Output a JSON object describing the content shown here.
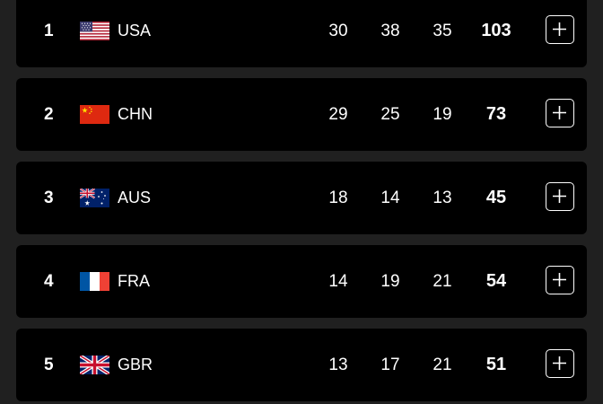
{
  "rows": [
    {
      "rank": "1",
      "flag_icon": "usa-flag-icon",
      "code": "USA",
      "gold": "30",
      "silver": "38",
      "bronze": "35",
      "total": "103"
    },
    {
      "rank": "2",
      "flag_icon": "china-flag-icon",
      "code": "CHN",
      "gold": "29",
      "silver": "25",
      "bronze": "19",
      "total": "73"
    },
    {
      "rank": "3",
      "flag_icon": "australia-flag-icon",
      "code": "AUS",
      "gold": "18",
      "silver": "14",
      "bronze": "13",
      "total": "45"
    },
    {
      "rank": "4",
      "flag_icon": "france-flag-icon",
      "code": "FRA",
      "gold": "14",
      "silver": "19",
      "bronze": "21",
      "total": "54"
    },
    {
      "rank": "5",
      "flag_icon": "uk-flag-icon",
      "code": "GBR",
      "gold": "13",
      "silver": "17",
      "bronze": "21",
      "total": "51"
    }
  ],
  "expand_icon": "plus-icon",
  "colors": {
    "page_background": "#202020",
    "row_background": "#000000",
    "text": "#ffffff"
  }
}
